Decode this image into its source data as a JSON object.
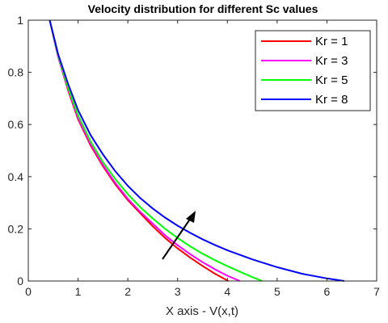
{
  "chart_data": {
    "type": "line",
    "title": "Velocity distribution for different Sc values",
    "xlabel": "X axis - V(x,t)",
    "ylabel": "",
    "xlim": [
      0,
      7
    ],
    "ylim": [
      0,
      1
    ],
    "xticks": [
      "0",
      "1",
      "2",
      "3",
      "4",
      "5",
      "6",
      "7"
    ],
    "yticks": [
      "0",
      "0.2",
      "0.4",
      "0.6",
      "0.8",
      "1"
    ],
    "grid": false,
    "legend_position": "top-right",
    "annotation": "arrow pointing in direction of increasing Kr",
    "series": [
      {
        "name": "Kr = 1",
        "color": "#ff0000",
        "points": [
          [
            0.43,
            1.0
          ],
          [
            0.6,
            0.86
          ],
          [
            0.8,
            0.73
          ],
          [
            1.0,
            0.62
          ],
          [
            1.25,
            0.52
          ],
          [
            1.5,
            0.44
          ],
          [
            1.75,
            0.37
          ],
          [
            2.0,
            0.31
          ],
          [
            2.25,
            0.26
          ],
          [
            2.5,
            0.21
          ],
          [
            2.75,
            0.165
          ],
          [
            3.0,
            0.125
          ],
          [
            3.25,
            0.09
          ],
          [
            3.5,
            0.058
          ],
          [
            3.75,
            0.028
          ],
          [
            4.02,
            0.0
          ]
        ]
      },
      {
        "name": "Kr = 3",
        "color": "#ff00ff",
        "points": [
          [
            0.43,
            1.0
          ],
          [
            0.6,
            0.86
          ],
          [
            0.8,
            0.735
          ],
          [
            1.0,
            0.625
          ],
          [
            1.25,
            0.525
          ],
          [
            1.5,
            0.445
          ],
          [
            1.75,
            0.375
          ],
          [
            2.0,
            0.315
          ],
          [
            2.25,
            0.265
          ],
          [
            2.5,
            0.22
          ],
          [
            2.75,
            0.175
          ],
          [
            3.0,
            0.137
          ],
          [
            3.25,
            0.103
          ],
          [
            3.5,
            0.072
          ],
          [
            3.75,
            0.045
          ],
          [
            4.0,
            0.02
          ],
          [
            4.25,
            0.0
          ]
        ]
      },
      {
        "name": "Kr = 5",
        "color": "#00ff00",
        "points": [
          [
            0.43,
            1.0
          ],
          [
            0.6,
            0.865
          ],
          [
            0.8,
            0.74
          ],
          [
            1.0,
            0.635
          ],
          [
            1.25,
            0.535
          ],
          [
            1.5,
            0.455
          ],
          [
            1.75,
            0.39
          ],
          [
            2.0,
            0.333
          ],
          [
            2.25,
            0.283
          ],
          [
            2.5,
            0.24
          ],
          [
            2.75,
            0.2
          ],
          [
            3.0,
            0.165
          ],
          [
            3.25,
            0.133
          ],
          [
            3.5,
            0.105
          ],
          [
            3.75,
            0.08
          ],
          [
            4.0,
            0.057
          ],
          [
            4.25,
            0.036
          ],
          [
            4.5,
            0.015
          ],
          [
            4.7,
            0.0
          ]
        ]
      },
      {
        "name": "Kr = 8",
        "color": "#0000ff",
        "points": [
          [
            0.43,
            1.0
          ],
          [
            0.6,
            0.87
          ],
          [
            0.8,
            0.755
          ],
          [
            1.0,
            0.655
          ],
          [
            1.25,
            0.56
          ],
          [
            1.5,
            0.485
          ],
          [
            1.75,
            0.42
          ],
          [
            2.0,
            0.365
          ],
          [
            2.25,
            0.318
          ],
          [
            2.5,
            0.278
          ],
          [
            2.75,
            0.243
          ],
          [
            3.0,
            0.212
          ],
          [
            3.25,
            0.185
          ],
          [
            3.5,
            0.16
          ],
          [
            3.75,
            0.138
          ],
          [
            4.0,
            0.118
          ],
          [
            4.5,
            0.083
          ],
          [
            5.0,
            0.053
          ],
          [
            5.5,
            0.028
          ],
          [
            6.0,
            0.01
          ],
          [
            6.35,
            0.0
          ]
        ]
      }
    ]
  }
}
